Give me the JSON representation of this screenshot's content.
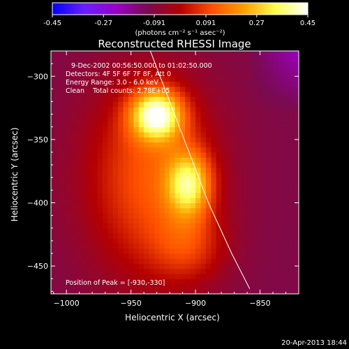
{
  "colors": {
    "background": "#000000",
    "foreground": "#ffffff",
    "colormap_stops": [
      "#0000ff",
      "#6a1fff",
      "#9a00c8",
      "#7a0a50",
      "#b40000",
      "#ff5000",
      "#ffa000",
      "#ffff50",
      "#ffffff"
    ]
  },
  "colorbar": {
    "range": [
      -0.45,
      0.45
    ],
    "ticks": [
      "-0.45",
      "-0.27",
      "-0.091",
      "0.091",
      "0.27",
      "0.45"
    ],
    "units_label": "(photons cm⁻² s⁻¹ asec⁻²)"
  },
  "annotations": {
    "time": "9-Dec-2002 00:56:50.000 to 01:02:50.000",
    "detectors": "Detectors: 4F 5F 6F 7F 8F, Att 0",
    "energy": "Energy Range: 3.0 - 6.0 keV",
    "clean": "Clean    Total counts: 2.78E+05",
    "peak": "Position of Peak = [-930,-330]"
  },
  "footer": {
    "date": "20-Apr-2013 18:44"
  },
  "chart_data": {
    "type": "heatmap",
    "title": "Reconstructed RHESSI Image",
    "xlabel": "Heliocentric X (arcsec)",
    "ylabel": "Heliocentric Y (arcsec)",
    "xlim": [
      -1012,
      -820
    ],
    "ylim": [
      -472,
      -280
    ],
    "xticks": [
      -1000,
      -950,
      -900,
      -850
    ],
    "yticks": [
      -450,
      -400,
      -350,
      -300
    ],
    "peak": {
      "x": -930,
      "y": -330
    },
    "limb_curve": [
      [
        -935,
        -280
      ],
      [
        -920,
        -320
      ],
      [
        -905,
        -360
      ],
      [
        -890,
        -400
      ],
      [
        -872,
        -440
      ],
      [
        -858,
        -468
      ]
    ],
    "sources": [
      {
        "x": -930,
        "y": -330,
        "amplitude": 0.45,
        "sigma_x": 14,
        "sigma_y": 14
      },
      {
        "x": -905,
        "y": -385,
        "amplitude": 0.34,
        "sigma_x": 12,
        "sigma_y": 18
      },
      {
        "x": -935,
        "y": -380,
        "amplitude": 0.22,
        "sigma_x": 35,
        "sigma_y": 55
      },
      {
        "x": -905,
        "y": -435,
        "amplitude": 0.12,
        "sigma_x": 20,
        "sigma_y": 20
      }
    ],
    "background_level": -0.1
  }
}
